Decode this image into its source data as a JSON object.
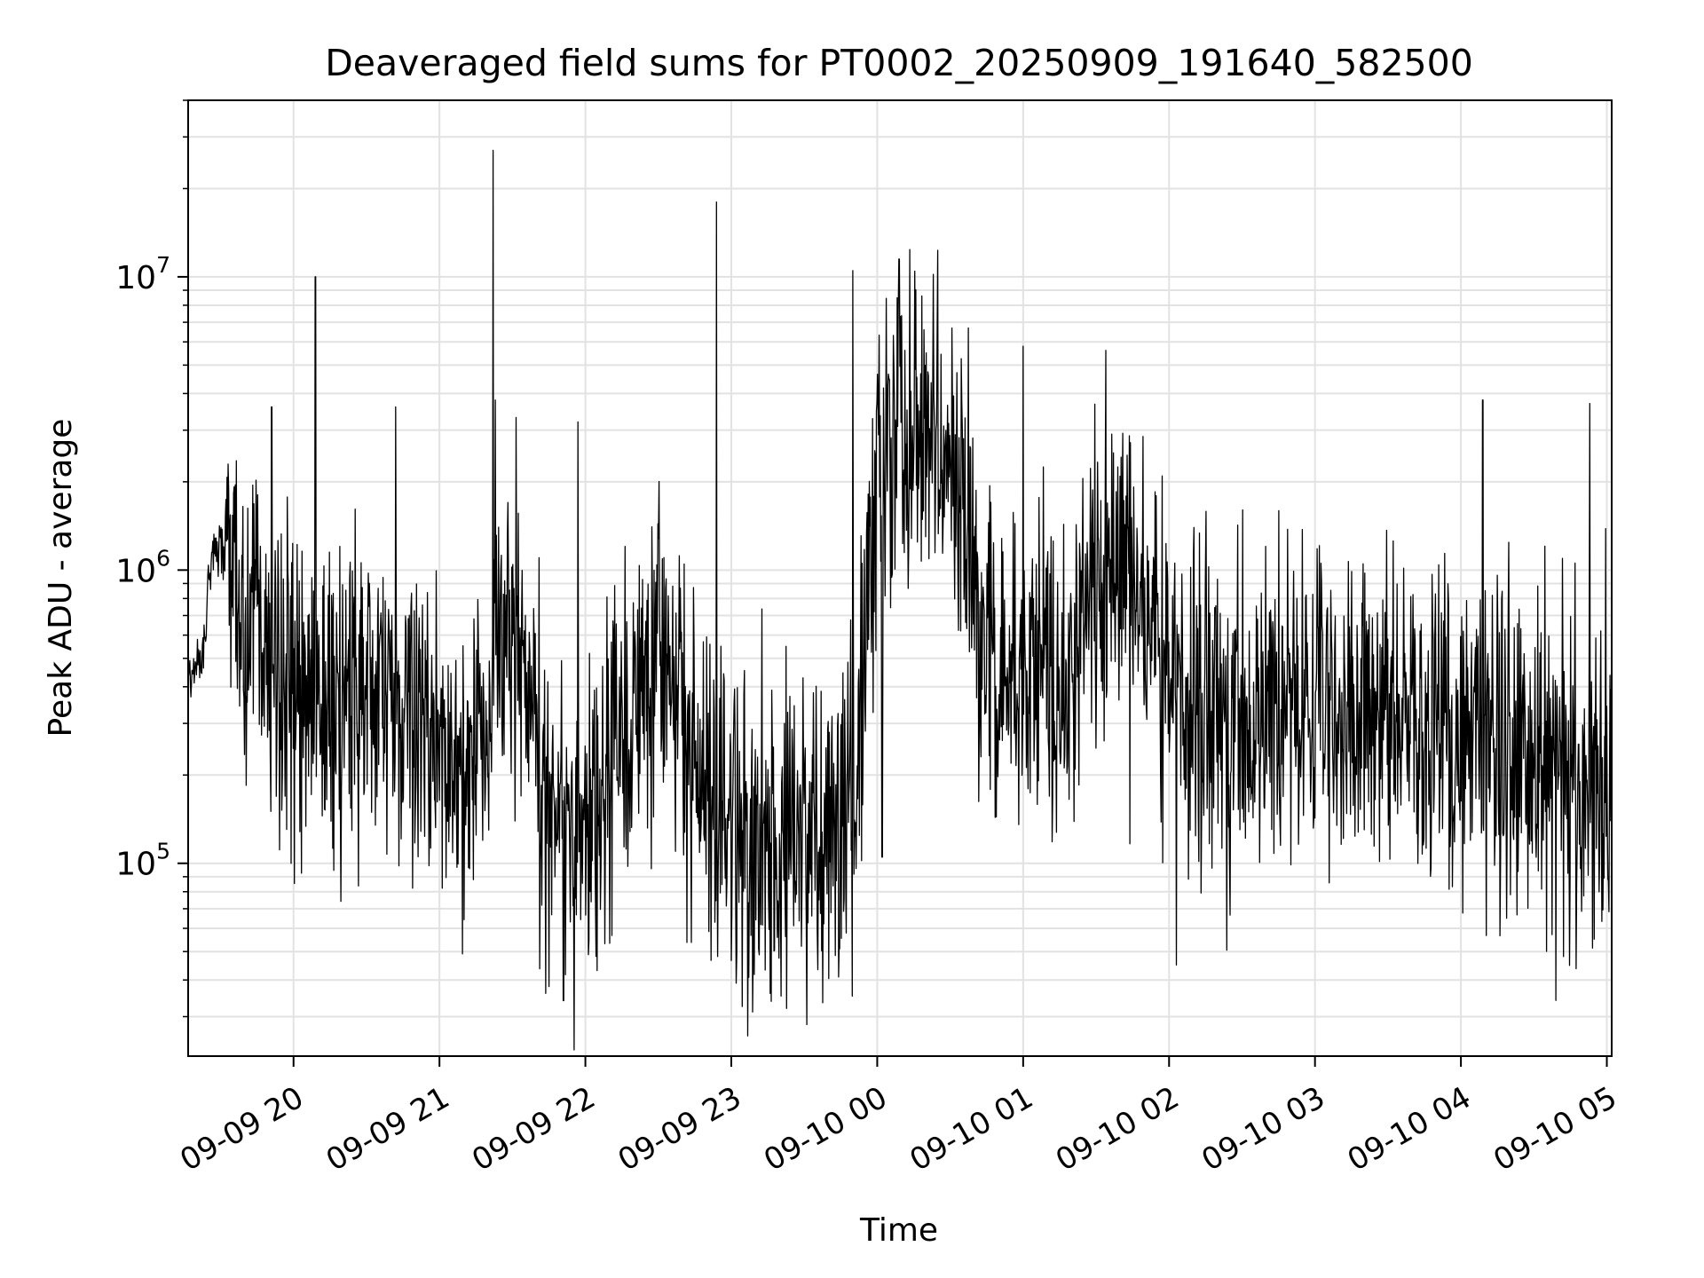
{
  "chart_data": {
    "type": "line",
    "title": "Deaveraged field sums for PT0002_20250909_191640_582500",
    "xlabel": "Time",
    "ylabel": "Peak ADU - average",
    "yscale": "log",
    "ylim": [
      22000,
      40000000
    ],
    "xlim": [
      "2025-09-09 19:16:40",
      "2025-09-10 05:02:00"
    ],
    "x_ticks": [
      "09-09 20",
      "09-09 21",
      "09-09 22",
      "09-09 23",
      "09-10 00",
      "09-10 01",
      "09-10 02",
      "09-10 03",
      "09-10 04",
      "09-10 05"
    ],
    "y_ticks": [
      {
        "value": 100000,
        "base": "10",
        "exp": "5"
      },
      {
        "value": 1000000,
        "base": "10",
        "exp": "6"
      },
      {
        "value": 10000000,
        "base": "10",
        "exp": "7"
      }
    ],
    "grid": true,
    "legend": "none",
    "series": [
      {
        "color": "#000000",
        "points": [
          [
            "2025-09-09 19:16:40",
            420000
          ],
          [
            "2025-09-09 19:22:00",
            470000
          ],
          [
            "2025-09-09 19:27:00",
            1200000
          ],
          [
            "2025-09-09 19:31:00",
            1150000
          ],
          [
            "2025-09-09 19:38:00",
            700000
          ],
          [
            "2025-09-09 19:45:00",
            600000
          ],
          [
            "2025-09-09 19:52:00",
            450000
          ],
          [
            "2025-09-09 20:00:00",
            400000
          ],
          [
            "2025-09-09 20:10:00",
            380000
          ],
          [
            "2025-09-09 20:20:00",
            380000
          ],
          [
            "2025-09-09 20:30:00",
            400000
          ],
          [
            "2025-09-09 20:40:00",
            370000
          ],
          [
            "2025-09-09 20:50:00",
            300000
          ],
          [
            "2025-09-09 21:00:00",
            260000
          ],
          [
            "2025-09-09 21:10:00",
            250000
          ],
          [
            "2025-09-09 21:20:00",
            330000
          ],
          [
            "2025-09-09 21:30:00",
            650000
          ],
          [
            "2025-09-09 21:38:00",
            300000
          ],
          [
            "2025-09-09 21:45:00",
            140000
          ],
          [
            "2025-09-09 21:52:00",
            100000
          ],
          [
            "2025-09-09 22:00:00",
            130000
          ],
          [
            "2025-09-09 22:10:00",
            220000
          ],
          [
            "2025-09-09 22:20:00",
            330000
          ],
          [
            "2025-09-09 22:30:00",
            550000
          ],
          [
            "2025-09-09 22:40:00",
            280000
          ],
          [
            "2025-09-09 22:50:00",
            170000
          ],
          [
            "2025-09-09 23:00:00",
            150000
          ],
          [
            "2025-09-09 23:10:00",
            120000
          ],
          [
            "2025-09-09 23:20:00",
            130000
          ],
          [
            "2025-09-09 23:30:00",
            120000
          ],
          [
            "2025-09-09 23:40:00",
            110000
          ],
          [
            "2025-09-09 23:50:00",
            120000
          ],
          [
            "2025-09-09 23:55:00",
            600000
          ],
          [
            "2025-09-10 00:00:00",
            2500000
          ],
          [
            "2025-09-10 00:10:00",
            3000000
          ],
          [
            "2025-09-10 00:20:00",
            2700000
          ],
          [
            "2025-09-10 00:30:00",
            2200000
          ],
          [
            "2025-09-10 00:36:00",
            1500000
          ],
          [
            "2025-09-10 00:42:00",
            500000
          ],
          [
            "2025-09-10 00:50:00",
            450000
          ],
          [
            "2025-09-10 01:00:00",
            500000
          ],
          [
            "2025-09-10 01:10:00",
            550000
          ],
          [
            "2025-09-10 01:18:00",
            300000
          ],
          [
            "2025-09-10 01:25:00",
            700000
          ],
          [
            "2025-09-10 01:35:00",
            850000
          ],
          [
            "2025-09-10 01:45:00",
            800000
          ],
          [
            "2025-09-10 01:55:00",
            600000
          ],
          [
            "2025-09-10 02:05:00",
            350000
          ],
          [
            "2025-09-10 02:15:00",
            300000
          ],
          [
            "2025-09-10 02:30:00",
            330000
          ],
          [
            "2025-09-10 02:45:00",
            350000
          ],
          [
            "2025-09-10 03:00:00",
            330000
          ],
          [
            "2025-09-10 03:15:00",
            350000
          ],
          [
            "2025-09-10 03:30:00",
            320000
          ],
          [
            "2025-09-10 03:45:00",
            300000
          ],
          [
            "2025-09-10 04:00:00",
            280000
          ],
          [
            "2025-09-10 04:15:00",
            260000
          ],
          [
            "2025-09-10 04:30:00",
            250000
          ],
          [
            "2025-09-10 04:45:00",
            220000
          ],
          [
            "2025-09-10 05:02:00",
            180000
          ]
        ],
        "spikes": [
          [
            "2025-09-09 20:09:00",
            10000000
          ],
          [
            "2025-09-09 21:22:00",
            27000000
          ],
          [
            "2025-09-09 22:54:00",
            18000000
          ],
          [
            "2025-09-09 23:50:00",
            10500000
          ],
          [
            "2025-09-10 00:09:00",
            11500000
          ],
          [
            "2025-09-10 01:00:00",
            5800000
          ],
          [
            "2025-09-10 04:09:00",
            3800000
          ],
          [
            "2025-09-10 04:53:00",
            3700000
          ],
          [
            "2025-09-09 20:42:00",
            3600000
          ],
          [
            "2025-09-09 21:23:00",
            3800000
          ],
          [
            "2025-09-09 19:51:00",
            3600000
          ],
          [
            "2025-09-09 21:57:00",
            3200000
          ],
          [
            "2025-09-09 21:51:00",
            34000
          ],
          [
            "2025-09-09 23:16:00",
            36000
          ],
          [
            "2025-09-10 02:03:00",
            45000
          ],
          [
            "2025-09-09 21:45:00",
            38000
          ],
          [
            "2025-09-09 19:59:00",
            100000
          ],
          [
            "2025-09-10 00:02:00",
            105000
          ]
        ]
      }
    ]
  }
}
